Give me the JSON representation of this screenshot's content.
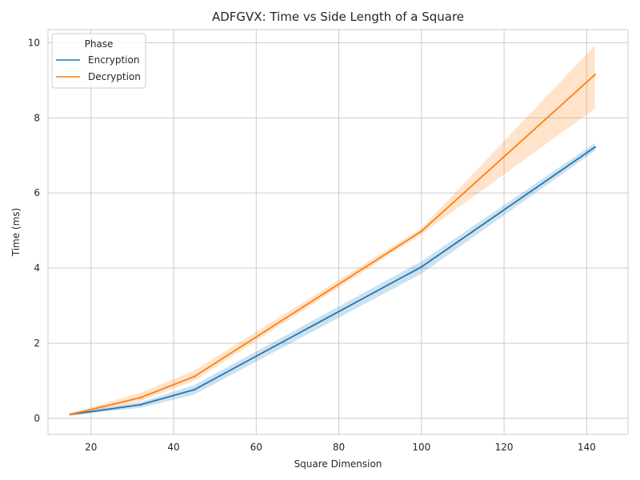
{
  "chart_data": {
    "type": "line",
    "title": "ADFGVX: Time vs Side Length of a Square",
    "xlabel": "Square Dimension",
    "ylabel": "Time (ms)",
    "xlim": [
      9.6,
      150
    ],
    "ylim": [
      -0.43,
      10.35
    ],
    "xticks": [
      20,
      40,
      60,
      80,
      100,
      120,
      140
    ],
    "yticks": [
      0,
      2,
      4,
      6,
      8,
      10
    ],
    "grid": true,
    "legend": {
      "title": "Phase",
      "placement": "top-left"
    },
    "x": [
      15,
      32,
      45,
      100,
      142
    ],
    "series": [
      {
        "name": "Encryption",
        "color": "#1f77b4",
        "values": [
          0.1,
          0.36,
          0.76,
          4.03,
          7.22
        ],
        "ci_lower": [
          0.07,
          0.28,
          0.63,
          3.85,
          7.12
        ],
        "ci_upper": [
          0.15,
          0.43,
          0.88,
          4.18,
          7.33
        ]
      },
      {
        "name": "Decryption",
        "color": "#ff7f0e",
        "values": [
          0.1,
          0.55,
          1.11,
          4.98,
          9.15
        ],
        "ci_lower": [
          0.08,
          0.46,
          1.0,
          4.9,
          8.25
        ],
        "ci_upper": [
          0.13,
          0.68,
          1.27,
          5.06,
          9.93
        ]
      }
    ]
  }
}
